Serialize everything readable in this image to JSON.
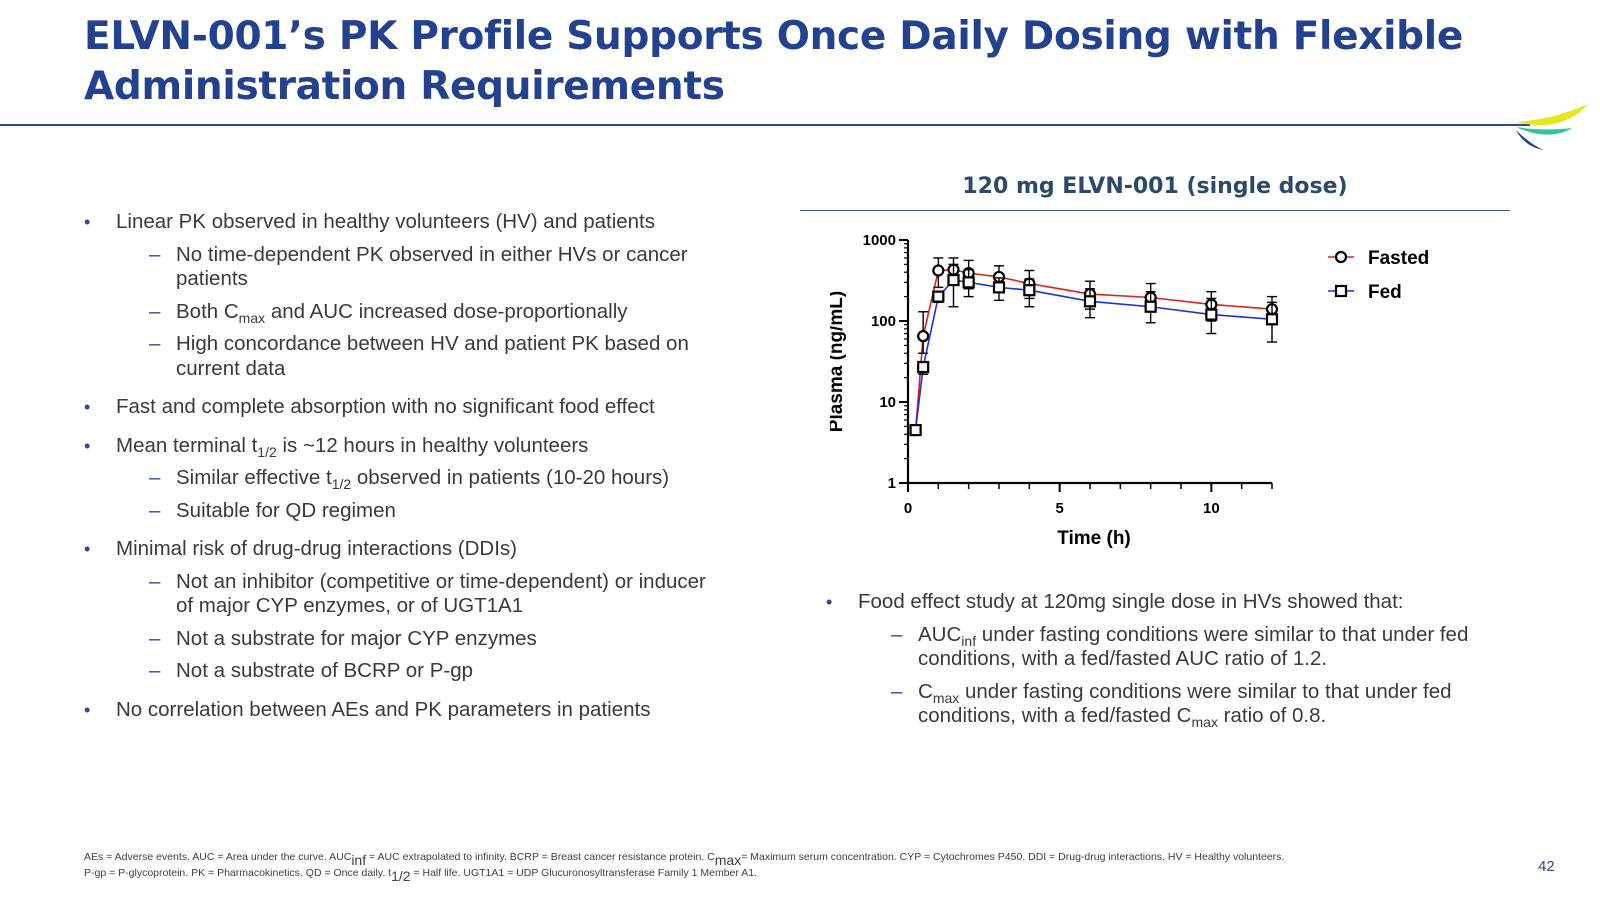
{
  "slide": {
    "title": "ELVN-001’s PK Profile Supports Once Daily Dosing with Flexible Administration Requirements",
    "page_number": "42"
  },
  "left_bullets": [
    {
      "text": "Linear PK observed in healthy volunteers (HV) and patients",
      "subs": [
        {
          "parts": [
            "No time-dependent PK observed in either HVs or cancer patients"
          ]
        },
        {
          "parts": [
            "Both C",
            "max",
            " and AUC increased dose-proportionally"
          ]
        },
        {
          "parts": [
            "High concordance between HV and patient PK based on current data"
          ]
        }
      ]
    },
    {
      "text": "Fast and complete absorption with no significant food effect",
      "subs": []
    },
    {
      "parts": [
        "Mean terminal t",
        "1/2",
        " is ~12 hours in healthy volunteers"
      ],
      "subs": [
        {
          "parts": [
            "Similar effective t",
            "1/2",
            " observed in patients (10-20 hours)"
          ]
        },
        {
          "parts": [
            "Suitable for QD regimen"
          ]
        }
      ]
    },
    {
      "text": "Minimal risk of drug-drug interactions (DDIs)",
      "subs": [
        {
          "parts": [
            "Not an inhibitor (competitive or time-dependent) or inducer of major CYP enzymes, or of UGT1A1"
          ]
        },
        {
          "parts": [
            "Not a substrate for major CYP enzymes"
          ]
        },
        {
          "parts": [
            "Not a substrate of BCRP or P-gp"
          ]
        }
      ]
    },
    {
      "text": "No correlation between AEs and PK parameters in patients",
      "subs": []
    }
  ],
  "right_bullet": {
    "text": "Food effect study at 120mg single dose in HVs showed that:",
    "subs": [
      {
        "parts": [
          "AUC",
          "inf",
          " under fasting conditions were similar to that under fed conditions, with a fed/fasted AUC ratio of 1.2."
        ]
      },
      {
        "parts": [
          "C",
          "max",
          " under fasting conditions were similar to that under fed conditions, with a fed/fasted C",
          "max",
          " ratio of 0.8."
        ]
      }
    ]
  },
  "footnote": {
    "line1_parts": [
      "AEs = Adverse events. AUC = Area under the curve. AUC",
      "inf",
      " = AUC extrapolated to infinity. BCRP = Breast cancer resistance protein. C",
      "max",
      "= Maximum serum concentration. CYP = Cytochromes P450. DDI = Drug-drug interactions. HV = Healthy volunteers."
    ],
    "line2_parts": [
      "P-gp = P-glycoprotein. PK = Pharmacokinetics. QD = Once daily.  t",
      "1/2",
      " = Half life. UGT1A1 = UDP Glucuronosyltransferase Family 1 Member A1."
    ]
  },
  "chart_data": {
    "type": "line",
    "title": "120 mg ELVN-001 (single dose)",
    "xlabel": "Time (h)",
    "ylabel": "Plasma (ng/mL)",
    "xlim": [
      0,
      12
    ],
    "ylim": [
      1,
      1000
    ],
    "yscale": "log",
    "xticks": [
      0,
      5,
      10
    ],
    "yticks": [
      1,
      10,
      100,
      1000
    ],
    "ytick_labels": [
      "1",
      "10",
      "100",
      "1000"
    ],
    "grid": false,
    "legend": "top-right",
    "series": [
      {
        "name": "Fasted",
        "color": "#e02020",
        "marker": "circle",
        "x": [
          0.25,
          0.5,
          1,
          1.5,
          2,
          3,
          4,
          6,
          8,
          10,
          12
        ],
        "y": [
          4.5,
          65,
          420,
          430,
          390,
          350,
          290,
          215,
          195,
          160,
          140
        ],
        "err_low": [
          4.0,
          40,
          260,
          300,
          250,
          250,
          190,
          140,
          130,
          100,
          90
        ],
        "err_high": [
          5.0,
          130,
          600,
          600,
          560,
          480,
          420,
          310,
          290,
          230,
          200
        ]
      },
      {
        "name": "Fed",
        "color": "#2030e0",
        "marker": "square",
        "x": [
          0.25,
          0.5,
          1,
          1.5,
          2,
          3,
          4,
          6,
          8,
          10,
          12
        ],
        "y": [
          4.5,
          27,
          200,
          320,
          300,
          260,
          240,
          175,
          150,
          120,
          105
        ],
        "err_low": [
          4.0,
          22,
          170,
          150,
          200,
          180,
          150,
          110,
          95,
          70,
          55
        ],
        "err_high": [
          5.0,
          30,
          230,
          500,
          430,
          340,
          330,
          250,
          230,
          190,
          170
        ]
      }
    ]
  }
}
